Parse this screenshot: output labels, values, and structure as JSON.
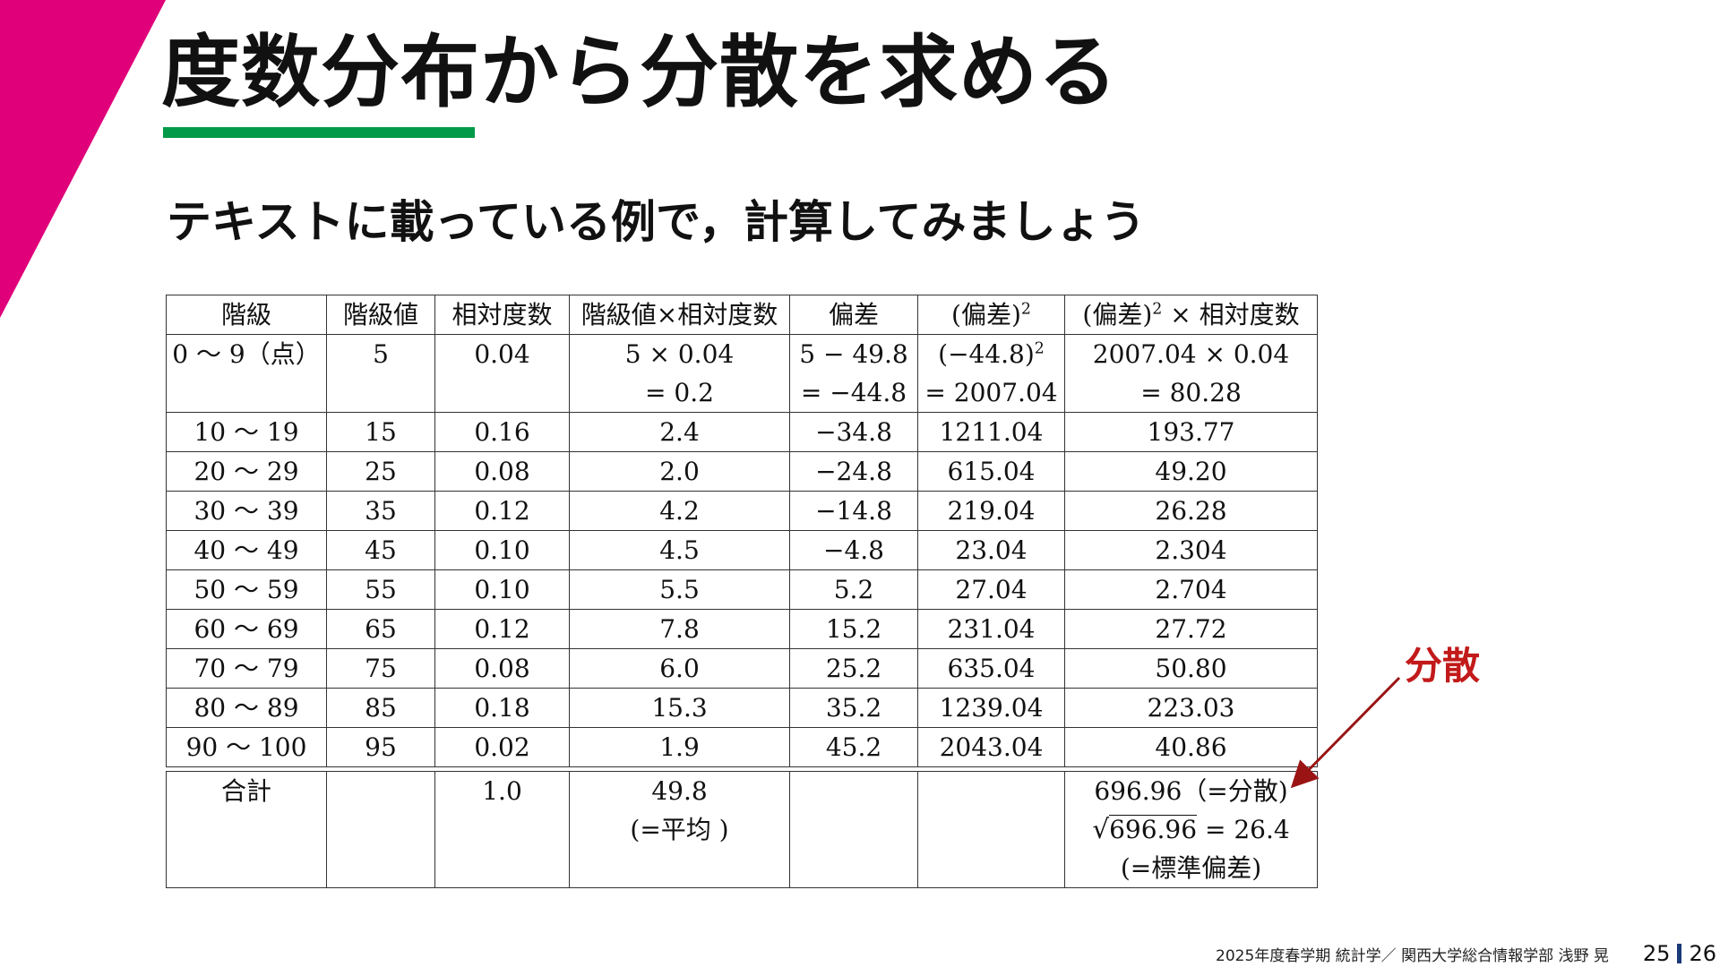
{
  "title": "度数分布から分散を求める",
  "subtitle": "テキストに載っている例で，計算してみましょう",
  "table": {
    "headers": [
      "階級",
      "階級値",
      "相対度数",
      "階級値×相対度数",
      "偏差",
      "(偏差)",
      "(偏差)",
      "× 相対度数"
    ],
    "header_superscript": "2",
    "first_row": {
      "class": "0 ～ 9（点）",
      "value": "5",
      "rel_freq": "0.04",
      "product_line1": "5 × 0.04",
      "product_line2": "= 0.2",
      "deviation_line1": "5 − 49.8",
      "deviation_line2": "= −44.8",
      "sq_dev_line1": "(−44.8)",
      "sq_dev_line2": "= 2007.04",
      "weighted_line1": "2007.04 × 0.04",
      "weighted_line2": "= 80.28"
    },
    "rows": [
      [
        "10 ～ 19",
        "15",
        "0.16",
        "2.4",
        "−34.8",
        "1211.04",
        "193.77"
      ],
      [
        "20 ～ 29",
        "25",
        "0.08",
        "2.0",
        "−24.8",
        "615.04",
        "49.20"
      ],
      [
        "30 ～ 39",
        "35",
        "0.12",
        "4.2",
        "−14.8",
        "219.04",
        "26.28"
      ],
      [
        "40 ～ 49",
        "45",
        "0.10",
        "4.5",
        "−4.8",
        "23.04",
        "2.304"
      ],
      [
        "50 ～ 59",
        "55",
        "0.10",
        "5.5",
        "5.2",
        "27.04",
        "2.704"
      ],
      [
        "60 ～ 69",
        "65",
        "0.12",
        "7.8",
        "15.2",
        "231.04",
        "27.72"
      ],
      [
        "70 ～ 79",
        "75",
        "0.08",
        "6.0",
        "25.2",
        "635.04",
        "50.80"
      ],
      [
        "80 ～ 89",
        "85",
        "0.18",
        "15.3",
        "35.2",
        "1239.04",
        "223.03"
      ],
      [
        "90 ～ 100",
        "95",
        "0.02",
        "1.9",
        "45.2",
        "2043.04",
        "40.86"
      ]
    ],
    "total": {
      "label": "合計",
      "rel_freq": "1.0",
      "mean_value": "49.8",
      "mean_note": "(=平均 )",
      "variance_line": "696.96（=分散)",
      "sqrt_symbol": "√",
      "sqrt_value": "696.96",
      "sqrt_result": "= 26.4",
      "std_note": "(=標準偏差)"
    }
  },
  "annotation": {
    "label": "分散",
    "color": "#c21a1a"
  },
  "colors": {
    "accent_magenta": "#e0007a",
    "underline_green": "#009a48",
    "page_separator": "#1a3a78"
  },
  "footer": {
    "text": "2025年度春学期 統計学／ 関西大学総合情報学部 浅野 晃",
    "page": "25",
    "total_pages": "26"
  }
}
